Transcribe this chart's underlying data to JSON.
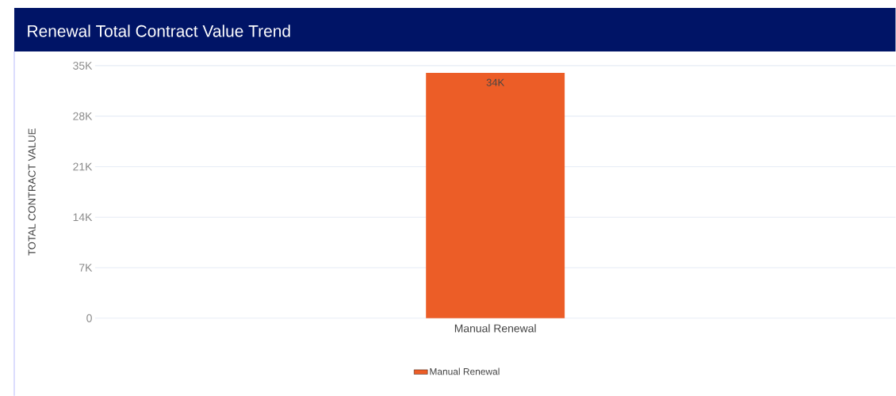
{
  "chart_data": {
    "type": "bar",
    "title": "Renewal Total Contract Value Trend",
    "ylabel": "TOTAL CONTRACT VALUE",
    "categories": [
      "Manual Renewal"
    ],
    "series": [
      {
        "name": "Manual Renewal",
        "color": "#ec5d27",
        "values": [
          34000
        ],
        "value_labels": [
          "34K"
        ]
      }
    ],
    "ylim": [
      0,
      35000
    ],
    "yticks": [
      {
        "value": 0,
        "label": "0"
      },
      {
        "value": 7000,
        "label": "7K"
      },
      {
        "value": 14000,
        "label": "14K"
      },
      {
        "value": 21000,
        "label": "21K"
      },
      {
        "value": 28000,
        "label": "28K"
      },
      {
        "value": 35000,
        "label": "35K"
      }
    ],
    "grid": "y",
    "legend": "bottom"
  }
}
